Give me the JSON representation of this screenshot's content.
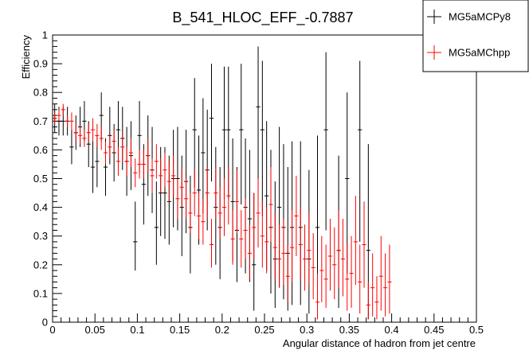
{
  "chart_data": {
    "type": "scatter",
    "title": "B_541_HLOC_EFF_-0.7887",
    "xlabel": "Angular distance of hadron from jet centre",
    "ylabel": "Efficiency",
    "xlim": [
      0,
      0.5
    ],
    "ylim": [
      0,
      1
    ],
    "x_ticks": [
      "0",
      "0.05",
      "0.1",
      "0.15",
      "0.2",
      "0.25",
      "0.3",
      "0.35",
      "0.4",
      "0.45",
      "0.5"
    ],
    "y_ticks": [
      "0",
      "0.1",
      "0.2",
      "0.3",
      "0.4",
      "0.5",
      "0.6",
      "0.7",
      "0.8",
      "0.9",
      "1"
    ],
    "grid": false,
    "legend_position": "top-right",
    "series": [
      {
        "name": "MG5aMCPy8",
        "color": "#000000",
        "x": [
          0.0025,
          0.0075,
          0.0125,
          0.0175,
          0.0225,
          0.0275,
          0.0325,
          0.0375,
          0.0425,
          0.0475,
          0.0525,
          0.0575,
          0.0625,
          0.0675,
          0.0725,
          0.0775,
          0.0825,
          0.0875,
          0.0925,
          0.0975,
          0.1025,
          0.1075,
          0.1125,
          0.1175,
          0.1225,
          0.1275,
          0.1325,
          0.1375,
          0.1425,
          0.1475,
          0.1525,
          0.1575,
          0.1625,
          0.1675,
          0.1725,
          0.1775,
          0.1825,
          0.1875,
          0.1925,
          0.1975,
          0.2025,
          0.2075,
          0.2125,
          0.2175,
          0.2225,
          0.2275,
          0.2325,
          0.2375,
          0.2425,
          0.2475,
          0.2525,
          0.2575,
          0.2625,
          0.2675,
          0.2725,
          0.2775,
          0.2825,
          0.2925,
          0.3025,
          0.3125,
          0.3225,
          0.3375,
          0.3475,
          0.3625,
          0.3725
        ],
        "y": [
          0.71,
          0.7,
          0.7,
          0.7,
          0.61,
          0.66,
          0.68,
          0.7,
          0.62,
          0.54,
          0.56,
          0.72,
          0.54,
          0.65,
          0.59,
          0.67,
          0.64,
          0.56,
          0.58,
          0.28,
          0.65,
          0.48,
          0.58,
          0.53,
          0.33,
          0.45,
          0.45,
          0.42,
          0.5,
          0.5,
          0.4,
          0.49,
          0.33,
          0.67,
          0.46,
          0.59,
          0.53,
          0.71,
          0.4,
          0.33,
          0.67,
          0.67,
          0.42,
          0.32,
          0.67,
          0.4,
          0.36,
          0.2,
          0.75,
          0.67,
          0.44,
          0.33,
          0.22,
          0.4,
          0.33,
          0.24,
          0.33,
          0.33,
          0.22,
          0.33,
          0.67,
          0.25,
          0.5,
          0.67,
          0.25
        ],
        "err_lo": [
          0.05,
          0.05,
          0.05,
          0.05,
          0.06,
          0.06,
          0.07,
          0.07,
          0.08,
          0.09,
          0.09,
          0.09,
          0.1,
          0.1,
          0.1,
          0.11,
          0.11,
          0.12,
          0.12,
          0.1,
          0.13,
          0.14,
          0.14,
          0.15,
          0.13,
          0.15,
          0.16,
          0.15,
          0.17,
          0.18,
          0.17,
          0.18,
          0.16,
          0.2,
          0.19,
          0.21,
          0.21,
          0.22,
          0.2,
          0.18,
          0.24,
          0.24,
          0.21,
          0.18,
          0.26,
          0.23,
          0.22,
          0.16,
          0.3,
          0.3,
          0.26,
          0.23,
          0.17,
          0.28,
          0.25,
          0.2,
          0.27,
          0.27,
          0.19,
          0.28,
          0.35,
          0.2,
          0.33,
          0.39,
          0.24
        ],
        "err_hi": [
          0.05,
          0.05,
          0.05,
          0.05,
          0.06,
          0.06,
          0.07,
          0.07,
          0.08,
          0.09,
          0.09,
          0.08,
          0.1,
          0.1,
          0.1,
          0.1,
          0.11,
          0.12,
          0.12,
          0.14,
          0.12,
          0.14,
          0.14,
          0.15,
          0.16,
          0.16,
          0.16,
          0.16,
          0.17,
          0.18,
          0.18,
          0.18,
          0.18,
          0.18,
          0.19,
          0.19,
          0.21,
          0.19,
          0.21,
          0.21,
          0.22,
          0.22,
          0.22,
          0.22,
          0.23,
          0.24,
          0.24,
          0.25,
          0.21,
          0.24,
          0.26,
          0.27,
          0.27,
          0.28,
          0.29,
          0.3,
          0.3,
          0.3,
          0.31,
          0.32,
          0.27,
          0.33,
          0.3,
          0.24,
          0.37
        ]
      },
      {
        "name": "MG5aMChpp",
        "color": "#ff0000",
        "x": [
          0.0025,
          0.0075,
          0.0125,
          0.0175,
          0.0225,
          0.0275,
          0.0325,
          0.0375,
          0.0425,
          0.0475,
          0.0525,
          0.0575,
          0.0625,
          0.0675,
          0.0725,
          0.0775,
          0.0825,
          0.0875,
          0.0925,
          0.0975,
          0.1025,
          0.1075,
          0.1125,
          0.1175,
          0.1225,
          0.1275,
          0.1325,
          0.1375,
          0.1425,
          0.1475,
          0.1525,
          0.1575,
          0.1625,
          0.1675,
          0.1725,
          0.1775,
          0.1825,
          0.1875,
          0.1925,
          0.1975,
          0.2025,
          0.2075,
          0.2125,
          0.2175,
          0.2225,
          0.2275,
          0.2325,
          0.2375,
          0.2425,
          0.2475,
          0.2525,
          0.2575,
          0.2625,
          0.2675,
          0.2725,
          0.2775,
          0.2825,
          0.2875,
          0.2925,
          0.2975,
          0.3025,
          0.3075,
          0.3125,
          0.3175,
          0.3225,
          0.3275,
          0.3325,
          0.3375,
          0.3425,
          0.3475,
          0.3525,
          0.3575,
          0.3625,
          0.3675,
          0.3725,
          0.3775,
          0.3825,
          0.3875,
          0.3925,
          0.3975
        ],
        "y": [
          0.71,
          0.72,
          0.74,
          0.7,
          0.7,
          0.66,
          0.65,
          0.64,
          0.66,
          0.67,
          0.65,
          0.64,
          0.59,
          0.61,
          0.63,
          0.56,
          0.61,
          0.56,
          0.59,
          0.52,
          0.55,
          0.55,
          0.58,
          0.51,
          0.56,
          0.51,
          0.53,
          0.49,
          0.51,
          0.43,
          0.47,
          0.43,
          0.38,
          0.45,
          0.37,
          0.35,
          0.45,
          0.27,
          0.45,
          0.38,
          0.4,
          0.44,
          0.29,
          0.42,
          0.29,
          0.32,
          0.24,
          0.33,
          0.38,
          0.3,
          0.28,
          0.41,
          0.26,
          0.22,
          0.24,
          0.16,
          0.26,
          0.37,
          0.27,
          0.22,
          0.25,
          0.19,
          0.07,
          0.18,
          0.15,
          0.23,
          0.2,
          0.25,
          0.22,
          0.15,
          0.17,
          0.28,
          0.14,
          0.27,
          0.06,
          0.12,
          0.07,
          0.16,
          0.12,
          0.14
        ],
        "err_lo": [
          0.02,
          0.02,
          0.02,
          0.02,
          0.03,
          0.03,
          0.03,
          0.03,
          0.03,
          0.04,
          0.04,
          0.04,
          0.04,
          0.04,
          0.04,
          0.05,
          0.05,
          0.05,
          0.05,
          0.05,
          0.05,
          0.05,
          0.06,
          0.06,
          0.06,
          0.06,
          0.06,
          0.07,
          0.07,
          0.07,
          0.07,
          0.07,
          0.07,
          0.08,
          0.08,
          0.08,
          0.09,
          0.08,
          0.09,
          0.09,
          0.1,
          0.1,
          0.09,
          0.11,
          0.1,
          0.1,
          0.09,
          0.11,
          0.12,
          0.11,
          0.11,
          0.13,
          0.11,
          0.1,
          0.11,
          0.09,
          0.12,
          0.14,
          0.12,
          0.11,
          0.12,
          0.11,
          0.06,
          0.11,
          0.1,
          0.12,
          0.12,
          0.13,
          0.13,
          0.11,
          0.12,
          0.15,
          0.11,
          0.15,
          0.05,
          0.1,
          0.06,
          0.12,
          0.1,
          0.11
        ],
        "err_hi": [
          0.02,
          0.02,
          0.02,
          0.02,
          0.03,
          0.03,
          0.03,
          0.03,
          0.03,
          0.04,
          0.04,
          0.04,
          0.04,
          0.04,
          0.04,
          0.05,
          0.05,
          0.05,
          0.05,
          0.05,
          0.05,
          0.05,
          0.06,
          0.06,
          0.06,
          0.06,
          0.06,
          0.07,
          0.07,
          0.07,
          0.07,
          0.07,
          0.07,
          0.08,
          0.08,
          0.08,
          0.09,
          0.09,
          0.09,
          0.09,
          0.1,
          0.1,
          0.1,
          0.11,
          0.1,
          0.11,
          0.1,
          0.12,
          0.12,
          0.12,
          0.12,
          0.13,
          0.12,
          0.12,
          0.12,
          0.11,
          0.13,
          0.14,
          0.13,
          0.12,
          0.13,
          0.12,
          0.1,
          0.12,
          0.12,
          0.13,
          0.13,
          0.14,
          0.14,
          0.12,
          0.13,
          0.16,
          0.13,
          0.15,
          0.08,
          0.12,
          0.09,
          0.14,
          0.12,
          0.13
        ]
      }
    ]
  }
}
